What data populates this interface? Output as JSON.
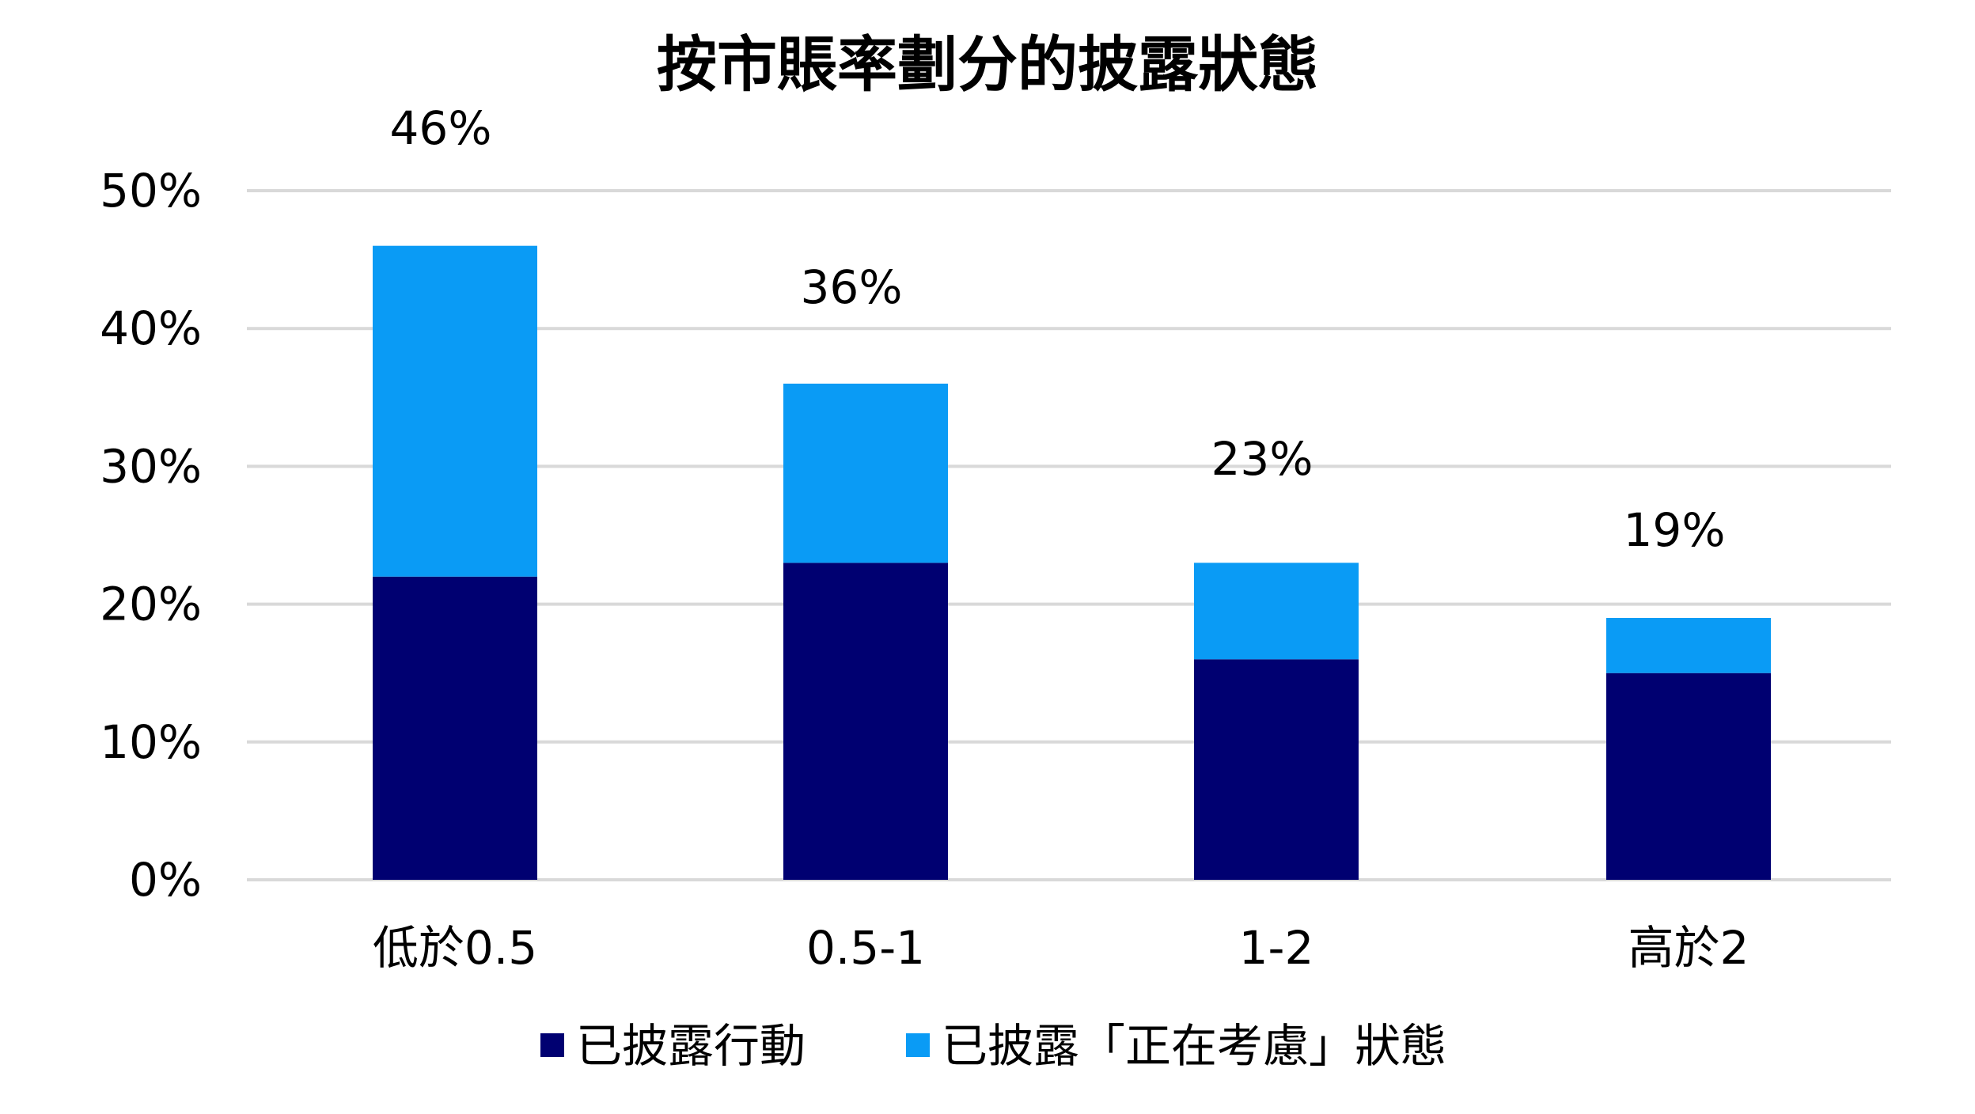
{
  "chart_data": {
    "type": "bar",
    "stacked": true,
    "title": "按市賬率劃分的披露狀態",
    "categories": [
      "低於0.5",
      "0.5-1",
      "1-2",
      "高於2"
    ],
    "series": [
      {
        "name": "已披露行動",
        "values": [
          22,
          23,
          16,
          15
        ],
        "color": "#000071"
      },
      {
        "name": "已披露「正在考慮」狀態",
        "values": [
          24,
          13,
          7,
          4
        ],
        "color": "#0a9bf5"
      }
    ],
    "totals": [
      "46%",
      "36%",
      "23%",
      "19%"
    ],
    "total_values": [
      46,
      36,
      23,
      19
    ],
    "yticks": [
      "0%",
      "10%",
      "20%",
      "30%",
      "40%",
      "50%"
    ],
    "ytick_values": [
      0,
      10,
      20,
      30,
      40,
      50
    ],
    "ylim": [
      0,
      50
    ],
    "xlabel": "",
    "ylabel": "",
    "grid": true,
    "legend_position": "bottom"
  }
}
